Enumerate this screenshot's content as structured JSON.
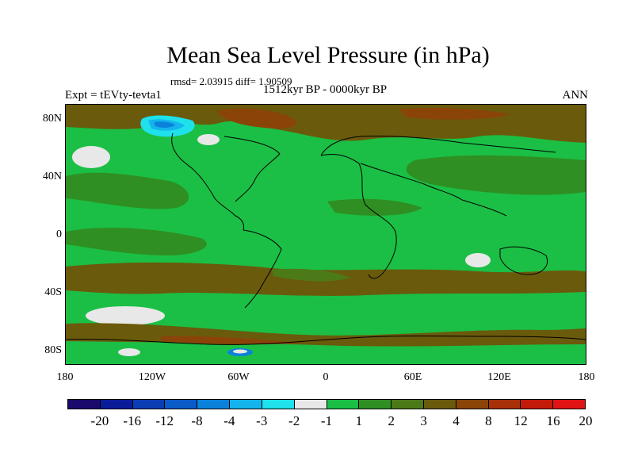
{
  "title": "Mean Sea Level Pressure (in hPa)",
  "stats_text": "rmsd= 2.03915 diff= 1.90509",
  "experiment": "Expt = tEVty-tevta1",
  "period": "1512kyr BP - 0000kyr BP",
  "season": "ANN",
  "map": {
    "projection": "cylindrical-equidistant",
    "lon_range": [
      -180,
      180
    ],
    "lat_range": [
      -90,
      90
    ],
    "ocean_fill": "#1bbf45",
    "y_ticks": [
      "80N",
      "40N",
      "0",
      "40S",
      "80S"
    ],
    "x_ticks": [
      "180",
      "120W",
      "60W",
      "0",
      "60E",
      "120E",
      "180"
    ]
  },
  "colorbar": {
    "colors": [
      "#1a0a6e",
      "#0a1c9a",
      "#0a3cb4",
      "#0a5ac8",
      "#0a82dc",
      "#14b4ec",
      "#1ee1ec",
      "#e8e8e8",
      "#1bbf45",
      "#2f8f22",
      "#4d7a18",
      "#6a5a0c",
      "#8a4408",
      "#a83008",
      "#c41a0a",
      "#e01414"
    ],
    "labels": [
      "-20",
      "-16",
      "-12",
      "-8",
      "-4",
      "-3",
      "-2",
      "-1",
      "1",
      "2",
      "3",
      "4",
      "8",
      "12",
      "16",
      "20"
    ]
  }
}
